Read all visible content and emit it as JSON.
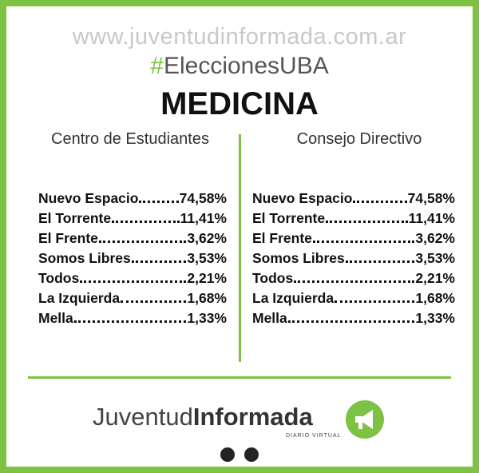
{
  "header": {
    "url": "www.juventudinformada.com.ar",
    "hashtag": {
      "symbol": "#",
      "text": "EleccionesUBA"
    },
    "title": "MEDICINA"
  },
  "columns": [
    {
      "heading": "Centro de Estudiantes",
      "rows": [
        {
          "name": "Nuevo Espacio",
          "value": "74,58%"
        },
        {
          "name": "El Torrente",
          "value": "11,41%"
        },
        {
          "name": "El Frente",
          "value": "3,62%"
        },
        {
          "name": "Somos Libres",
          "value": "3,53%"
        },
        {
          "name": "Todos",
          "value": "2,21%"
        },
        {
          "name": "La Izquierda",
          "value": "1,68%"
        },
        {
          "name": "Mella",
          "value": "1,33%"
        }
      ]
    },
    {
      "heading": "Consejo Directivo",
      "rows": [
        {
          "name": "Nuevo Espacio",
          "value": "74,58%"
        },
        {
          "name": "El Torrente",
          "value": "11,41%"
        },
        {
          "name": "El Frente",
          "value": "3,62%"
        },
        {
          "name": "Somos Libres",
          "value": "3,53%"
        },
        {
          "name": "Todos",
          "value": "2,21%"
        },
        {
          "name": "La Izquierda",
          "value": "1,68%"
        },
        {
          "name": "Mella",
          "value": "1,33%"
        }
      ]
    }
  ],
  "footer": {
    "brand_light": "Juventud",
    "brand_bold": "Informada",
    "tagline": "DIARIO VIRTUAL"
  }
}
